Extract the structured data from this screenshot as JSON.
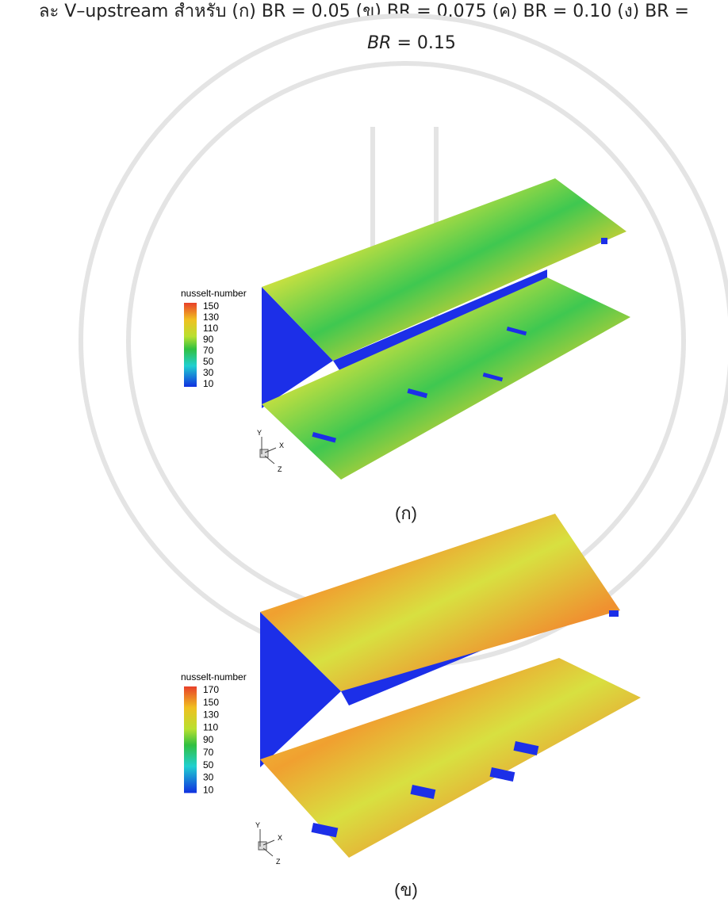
{
  "header": {
    "line1": "ละ V–upstream สำหรับ (ก) BR = 0.05 (ข) BR = 0.075 (ค) BR = 0.10 (ง) BR =",
    "line2": {
      "var": "BR",
      "rest": "= 0.15"
    }
  },
  "figures": [
    {
      "legend": {
        "title": "nusselt-number",
        "ticks": [
          150,
          130,
          110,
          90,
          70,
          50,
          30,
          10
        ]
      },
      "axes": [
        "Y",
        "X",
        "Z"
      ],
      "caption": "(ก)"
    },
    {
      "legend": {
        "title": "nusselt-number",
        "ticks": [
          170,
          150,
          130,
          110,
          90,
          70,
          50,
          30,
          10
        ]
      },
      "axes": [
        "Y",
        "X",
        "Z"
      ],
      "caption": "(ข)"
    }
  ]
}
